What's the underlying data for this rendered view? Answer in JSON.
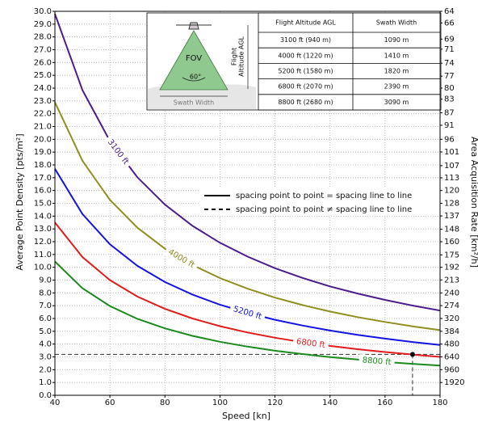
{
  "chart_data": {
    "type": "line",
    "xlabel": "Speed [kn]",
    "ylabel": "Average Point Density [pts/m²]",
    "y2label": "Area Acquisition Rate [km²/h]",
    "x": [
      40,
      50,
      60,
      70,
      80,
      90,
      100,
      110,
      120,
      130,
      140,
      150,
      160,
      170,
      180
    ],
    "series": [
      {
        "name": "3100 ft",
        "color": "#4b1c8c",
        "values": [
          29.8,
          23.84,
          19.87,
          17.03,
          14.9,
          13.24,
          11.92,
          10.84,
          9.93,
          9.17,
          8.51,
          7.95,
          7.45,
          7.01,
          6.62
        ]
      },
      {
        "name": "4000 ft",
        "color": "#8f8f1f",
        "values": [
          22.9,
          18.32,
          15.27,
          13.09,
          11.45,
          10.18,
          9.16,
          8.33,
          7.63,
          7.05,
          6.54,
          6.11,
          5.73,
          5.39,
          5.09
        ]
      },
      {
        "name": "5200 ft",
        "color": "#1414e0",
        "values": [
          17.7,
          14.16,
          11.8,
          10.11,
          8.85,
          7.87,
          7.08,
          6.44,
          5.9,
          5.45,
          5.06,
          4.72,
          4.43,
          4.16,
          3.93
        ]
      },
      {
        "name": "6800 ft",
        "color": "#e01c1c",
        "values": [
          13.5,
          10.8,
          9.0,
          7.71,
          6.75,
          6.0,
          5.4,
          4.91,
          4.5,
          4.15,
          3.86,
          3.6,
          3.38,
          3.18,
          3.0
        ]
      },
      {
        "name": "8800 ft",
        "color": "#1c8a1c",
        "values": [
          10.45,
          8.36,
          6.97,
          5.97,
          5.23,
          4.64,
          4.18,
          3.8,
          3.48,
          3.22,
          2.99,
          2.79,
          2.61,
          2.46,
          2.32
        ]
      }
    ],
    "xlim": [
      40,
      180
    ],
    "xticks": [
      40,
      60,
      80,
      100,
      120,
      140,
      160,
      180
    ],
    "ylim": [
      0,
      30
    ],
    "yticks": [
      {
        "value": 0,
        "label": "0.0"
      },
      {
        "value": 1,
        "label": "1.0"
      },
      {
        "value": 2,
        "label": "2.0"
      },
      {
        "value": 3,
        "label": "3.0"
      },
      {
        "value": 4,
        "label": "4.0"
      },
      {
        "value": 5,
        "label": "5.0"
      },
      {
        "value": 6,
        "label": "6.0"
      },
      {
        "value": 7,
        "label": "7.0"
      },
      {
        "value": 8,
        "label": "8.0"
      },
      {
        "value": 9,
        "label": "9.0"
      },
      {
        "value": 10,
        "label": "10.0"
      },
      {
        "value": 11,
        "label": "11.0"
      },
      {
        "value": 12,
        "label": "12.0"
      },
      {
        "value": 13,
        "label": "13.0"
      },
      {
        "value": 14,
        "label": "14.0"
      },
      {
        "value": 15,
        "label": "15.0"
      },
      {
        "value": 16,
        "label": "16.0"
      },
      {
        "value": 17,
        "label": "17.0"
      },
      {
        "value": 18,
        "label": "18.0"
      },
      {
        "value": 19,
        "label": "19.0"
      },
      {
        "value": 20,
        "label": "20.0"
      },
      {
        "value": 21,
        "label": "21.0"
      },
      {
        "value": 22,
        "label": "22.0"
      },
      {
        "value": 23,
        "label": "23.0"
      },
      {
        "value": 24,
        "label": "24.0"
      },
      {
        "value": 25,
        "label": "25.0"
      },
      {
        "value": 26,
        "label": "26.0"
      },
      {
        "value": 27,
        "label": "27.0"
      },
      {
        "value": 28,
        "label": "28.0"
      },
      {
        "value": 29,
        "label": "29.0"
      },
      {
        "value": 30,
        "label": "30.0"
      }
    ],
    "y2scale": "reciprocal",
    "y2ticks": [
      64,
      66,
      69,
      71,
      74,
      77,
      80,
      83,
      87,
      91,
      96,
      101,
      107,
      113,
      120,
      128,
      137,
      148,
      160,
      175,
      192,
      213,
      240,
      274,
      320,
      384,
      480,
      640,
      960,
      1920
    ],
    "grid": true,
    "reference_point": {
      "x": 170,
      "y": 3.2
    },
    "legend": [
      {
        "label": "spacing point to point = spacing line to line",
        "style": "solid"
      },
      {
        "label": "spacing point to point ≠ spacing line to line",
        "style": "dashed"
      }
    ],
    "inset": {
      "fov_label": "FOV",
      "angle_label": "60°",
      "swath_label": "Swath Width",
      "altitude_label": [
        "Flight",
        "Altitude AGL"
      ],
      "table": {
        "headers": [
          "Flight Altitude AGL",
          "Swath Width"
        ],
        "rows": [
          [
            "3100 ft (940 m)",
            "1090 m"
          ],
          [
            "4000 ft (1220 m)",
            "1410 m"
          ],
          [
            "5200 ft (1580 m)",
            "1820 m"
          ],
          [
            "6800 ft (2070 m)",
            "2390 m"
          ],
          [
            "8800 ft (2680 m)",
            "3090 m"
          ]
        ]
      }
    }
  }
}
